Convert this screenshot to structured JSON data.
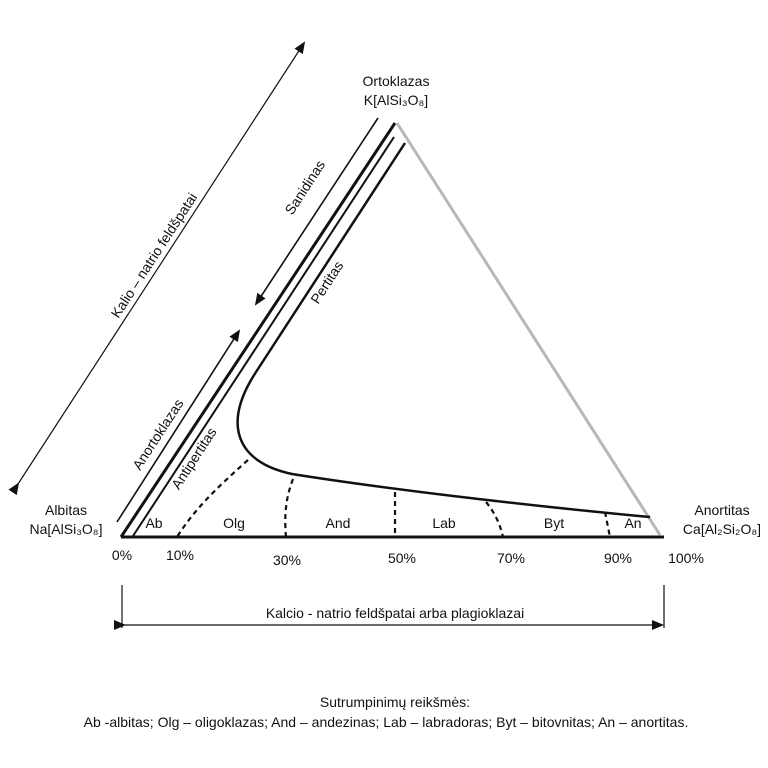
{
  "vertices": {
    "top": {
      "name": "Ortoklazas",
      "formula": "K[AlSi₃O₈]"
    },
    "left": {
      "name": "Albitas",
      "formula": "Na[AlSi₃O₈]"
    },
    "right": {
      "name": "Anortitas",
      "formula": "Ca[Al₂Si₂O₈]"
    }
  },
  "axis": {
    "percent_labels": [
      "0%",
      "10%",
      "30%",
      "50%",
      "70%",
      "90%",
      "100%"
    ],
    "bottom_range_label": "Kalcio - natrio feldšpatai arba plagioklazai",
    "left_range_label": "Kalio – natrio feldšpatai"
  },
  "series_labels": {
    "sanidinas": "Sanidinas",
    "pertitas": "Pertitas",
    "anortoklazas": "Anortoklazas",
    "antipertitas": "Antipertitas"
  },
  "regions": [
    "Ab",
    "Olg",
    "And",
    "Lab",
    "Byt",
    "An"
  ],
  "legend": {
    "title": "Sutrumpinimų reikšmės:",
    "text": "Ab -albitas; Olg – oligoklazas; And – andezinas; Lab – labradoras; Byt – bitovnitas; An – anortitas."
  }
}
